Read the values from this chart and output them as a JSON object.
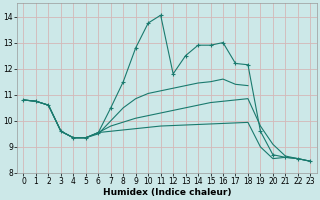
{
  "xlabel": "Humidex (Indice chaleur)",
  "bg_color": "#cce8e8",
  "grid_color": "#d4b8b8",
  "line_color": "#1a7a6e",
  "xlim": [
    -0.5,
    23.5
  ],
  "ylim": [
    8,
    14.5
  ],
  "yticks": [
    8,
    9,
    10,
    11,
    12,
    13,
    14
  ],
  "xticks": [
    0,
    1,
    2,
    3,
    4,
    5,
    6,
    7,
    8,
    9,
    10,
    11,
    12,
    13,
    14,
    15,
    16,
    17,
    18,
    19,
    20,
    21,
    22,
    23
  ],
  "series": [
    {
      "x": [
        0,
        1,
        2,
        3,
        4,
        5,
        6,
        7,
        8,
        9,
        10,
        11,
        12,
        13,
        14,
        15,
        16,
        17,
        18
      ],
      "y": [
        10.8,
        10.75,
        10.6,
        9.6,
        9.35,
        9.35,
        9.5,
        10.0,
        10.5,
        10.85,
        11.05,
        11.15,
        11.25,
        11.35,
        11.45,
        11.5,
        11.6,
        11.4,
        11.35
      ],
      "marker": false
    },
    {
      "x": [
        0,
        1,
        2,
        3,
        4,
        5,
        6,
        7,
        8,
        9,
        10,
        11,
        12,
        13,
        14,
        15,
        16,
        17,
        18,
        19,
        20,
        21,
        22,
        23
      ],
      "y": [
        10.8,
        10.75,
        10.6,
        9.6,
        9.35,
        9.35,
        9.55,
        10.5,
        11.5,
        12.8,
        13.75,
        14.05,
        11.8,
        12.5,
        12.9,
        12.9,
        13.0,
        12.2,
        12.15,
        9.6,
        8.7,
        8.6,
        8.55,
        8.45
      ],
      "marker": true
    },
    {
      "x": [
        0,
        1,
        2,
        3,
        4,
        5,
        6,
        7,
        8,
        9,
        10,
        11,
        12,
        13,
        14,
        15,
        16,
        17,
        18,
        19,
        20,
        21,
        22,
        23
      ],
      "y": [
        10.8,
        10.75,
        10.6,
        9.6,
        9.35,
        9.35,
        9.55,
        9.8,
        9.95,
        10.1,
        10.2,
        10.3,
        10.4,
        10.5,
        10.6,
        10.7,
        10.75,
        10.8,
        10.85,
        9.8,
        9.1,
        8.65,
        8.55,
        8.45
      ],
      "marker": false
    },
    {
      "x": [
        0,
        1,
        2,
        3,
        4,
        5,
        6,
        7,
        8,
        9,
        10,
        11,
        12,
        13,
        14,
        15,
        16,
        17,
        18,
        19,
        20,
        21,
        22,
        23
      ],
      "y": [
        10.8,
        10.75,
        10.6,
        9.6,
        9.35,
        9.35,
        9.55,
        9.6,
        9.65,
        9.7,
        9.75,
        9.8,
        9.82,
        9.84,
        9.86,
        9.88,
        9.9,
        9.92,
        9.94,
        9.0,
        8.55,
        8.6,
        8.55,
        8.45
      ],
      "marker": false
    }
  ]
}
